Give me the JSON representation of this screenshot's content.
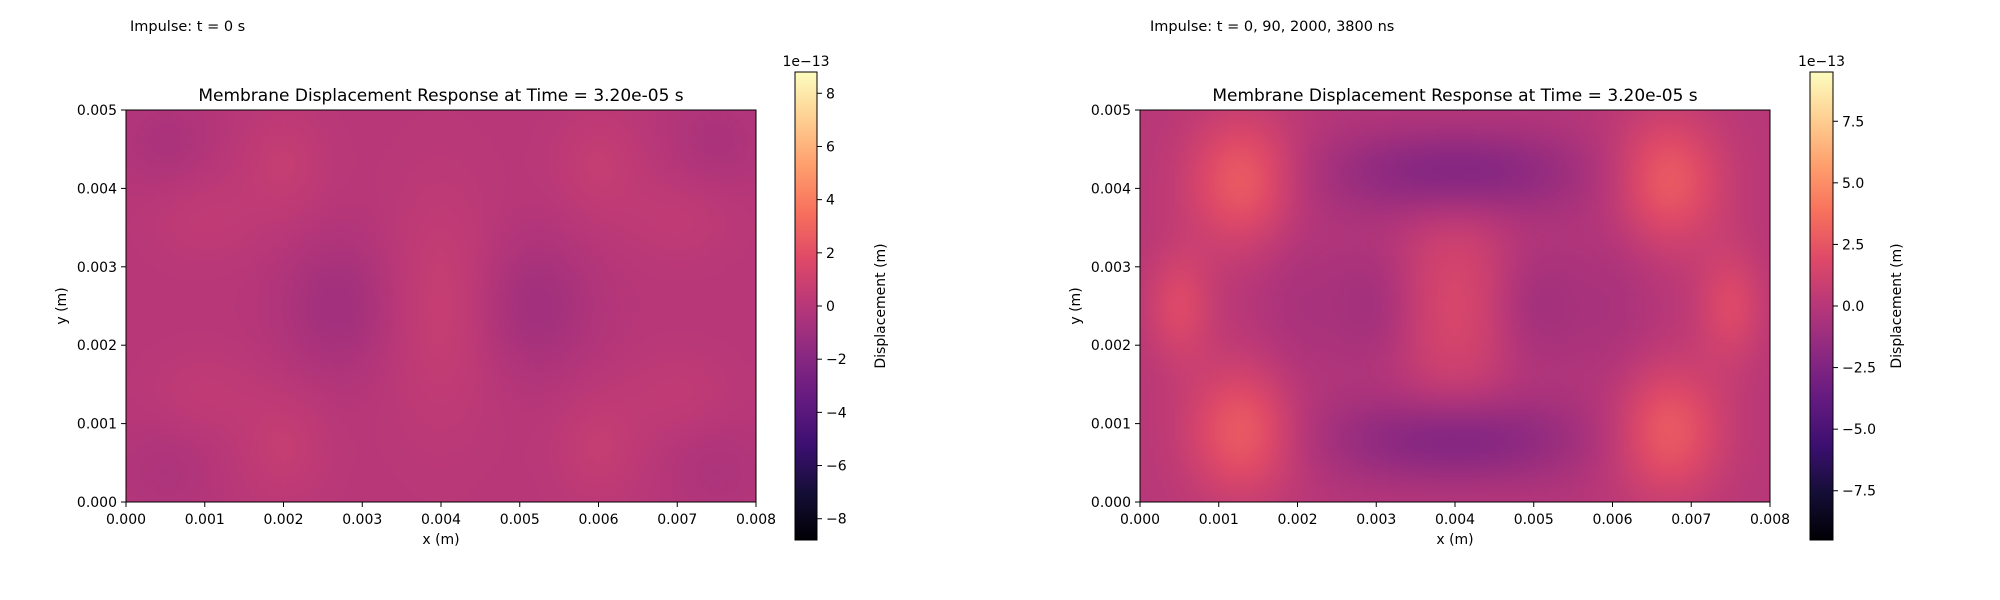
{
  "panels": [
    {
      "caption": "Impulse: t = 0 s"
    },
    {
      "caption": "Impulse: t = 0, 90, 2000, 3800 ns"
    }
  ],
  "chart_data": [
    {
      "type": "heatmap",
      "title": "Membrane Displacement Response at Time = 3.20e-05 s",
      "xlabel": "x (m)",
      "ylabel": "y (m)",
      "xlim": [
        0.0,
        0.008
      ],
      "ylim": [
        0.0,
        0.005
      ],
      "xticks": [
        "0.000",
        "0.001",
        "0.002",
        "0.003",
        "0.004",
        "0.005",
        "0.006",
        "0.007",
        "0.008"
      ],
      "yticks": [
        "0.000",
        "0.001",
        "0.002",
        "0.003",
        "0.004",
        "0.005"
      ],
      "colormap": "magma",
      "colorbar": {
        "label": "Displacement (m)",
        "scale_label": "1e−13",
        "range": [
          -8.8,
          8.8
        ],
        "ticks": [
          "8",
          "6",
          "4",
          "2",
          "0",
          "−2",
          "−4",
          "−6",
          "−8"
        ]
      },
      "grid": false,
      "field_blobs": [
        {
          "x": 0.004,
          "y": 0.0025,
          "value": 0.7,
          "sx": 0.0005,
          "sy": 0.0011
        },
        {
          "x": 0.0027,
          "y": 0.0025,
          "value": -0.9,
          "sx": 0.0005,
          "sy": 0.0006
        },
        {
          "x": 0.0052,
          "y": 0.0025,
          "value": -0.9,
          "sx": 0.0005,
          "sy": 0.0006
        },
        {
          "x": 0.002,
          "y": 0.0043,
          "value": 0.6,
          "sx": 0.0004,
          "sy": 0.0005
        },
        {
          "x": 0.002,
          "y": 0.0007,
          "value": 0.6,
          "sx": 0.0004,
          "sy": 0.0005
        },
        {
          "x": 0.006,
          "y": 0.0043,
          "value": 0.6,
          "sx": 0.0004,
          "sy": 0.0005
        },
        {
          "x": 0.006,
          "y": 0.0007,
          "value": 0.6,
          "sx": 0.0004,
          "sy": 0.0005
        },
        {
          "x": 0.001,
          "y": 0.0036,
          "value": 0.4,
          "sx": 0.0005,
          "sy": 0.0004
        },
        {
          "x": 0.001,
          "y": 0.0014,
          "value": 0.4,
          "sx": 0.0005,
          "sy": 0.0004
        },
        {
          "x": 0.007,
          "y": 0.0036,
          "value": 0.4,
          "sx": 0.0005,
          "sy": 0.0004
        },
        {
          "x": 0.007,
          "y": 0.0014,
          "value": 0.4,
          "sx": 0.0005,
          "sy": 0.0004
        },
        {
          "x": 0.0005,
          "y": 0.0046,
          "value": -0.5,
          "sx": 0.0004,
          "sy": 0.0004
        },
        {
          "x": 0.0075,
          "y": 0.0046,
          "value": -0.5,
          "sx": 0.0004,
          "sy": 0.0004
        },
        {
          "x": 0.0005,
          "y": 0.0004,
          "value": -0.4,
          "sx": 0.0004,
          "sy": 0.0004
        },
        {
          "x": 0.0075,
          "y": 0.0004,
          "value": -0.4,
          "sx": 0.0004,
          "sy": 0.0004
        }
      ]
    },
    {
      "type": "heatmap",
      "title": "Membrane Displacement Response at Time = 3.20e-05 s",
      "xlabel": "x (m)",
      "ylabel": "y (m)",
      "xlim": [
        0.0,
        0.008
      ],
      "ylim": [
        0.0,
        0.005
      ],
      "xticks": [
        "0.000",
        "0.001",
        "0.002",
        "0.003",
        "0.004",
        "0.005",
        "0.006",
        "0.007",
        "0.008"
      ],
      "yticks": [
        "0.000",
        "0.001",
        "0.002",
        "0.003",
        "0.004",
        "0.005"
      ],
      "colormap": "magma",
      "colorbar": {
        "label": "Displacement (m)",
        "scale_label": "1e−13",
        "range": [
          -9.5,
          9.5
        ],
        "ticks": [
          "7.5",
          "5.0",
          "2.5",
          "0.0",
          "−2.5",
          "−5.0",
          "−7.5"
        ]
      },
      "grid": false,
      "field_blobs": [
        {
          "x": 0.0013,
          "y": 0.0041,
          "value": 2.8,
          "sx": 0.0005,
          "sy": 0.0006
        },
        {
          "x": 0.0013,
          "y": 0.0009,
          "value": 2.8,
          "sx": 0.0005,
          "sy": 0.0006
        },
        {
          "x": 0.0067,
          "y": 0.0041,
          "value": 2.8,
          "sx": 0.0005,
          "sy": 0.0006
        },
        {
          "x": 0.0067,
          "y": 0.0009,
          "value": 2.8,
          "sx": 0.0005,
          "sy": 0.0006
        },
        {
          "x": 0.0005,
          "y": 0.0025,
          "value": 1.8,
          "sx": 0.0003,
          "sy": 0.0005
        },
        {
          "x": 0.0075,
          "y": 0.0025,
          "value": 1.8,
          "sx": 0.0003,
          "sy": 0.0005
        },
        {
          "x": 0.004,
          "y": 0.0042,
          "value": -2.6,
          "sx": 0.0011,
          "sy": 0.0004
        },
        {
          "x": 0.004,
          "y": 0.0008,
          "value": -2.6,
          "sx": 0.0011,
          "sy": 0.0004
        },
        {
          "x": 0.004,
          "y": 0.0025,
          "value": 1.6,
          "sx": 0.0006,
          "sy": 0.0011
        },
        {
          "x": 0.003,
          "y": 0.0025,
          "value": -1.1,
          "sx": 0.0004,
          "sy": 0.0006
        },
        {
          "x": 0.005,
          "y": 0.0025,
          "value": -1.1,
          "sx": 0.0004,
          "sy": 0.0006
        },
        {
          "x": 0.002,
          "y": 0.0025,
          "value": -0.6,
          "sx": 0.0004,
          "sy": 0.001
        },
        {
          "x": 0.006,
          "y": 0.0025,
          "value": -0.6,
          "sx": 0.0004,
          "sy": 0.001
        }
      ]
    }
  ]
}
